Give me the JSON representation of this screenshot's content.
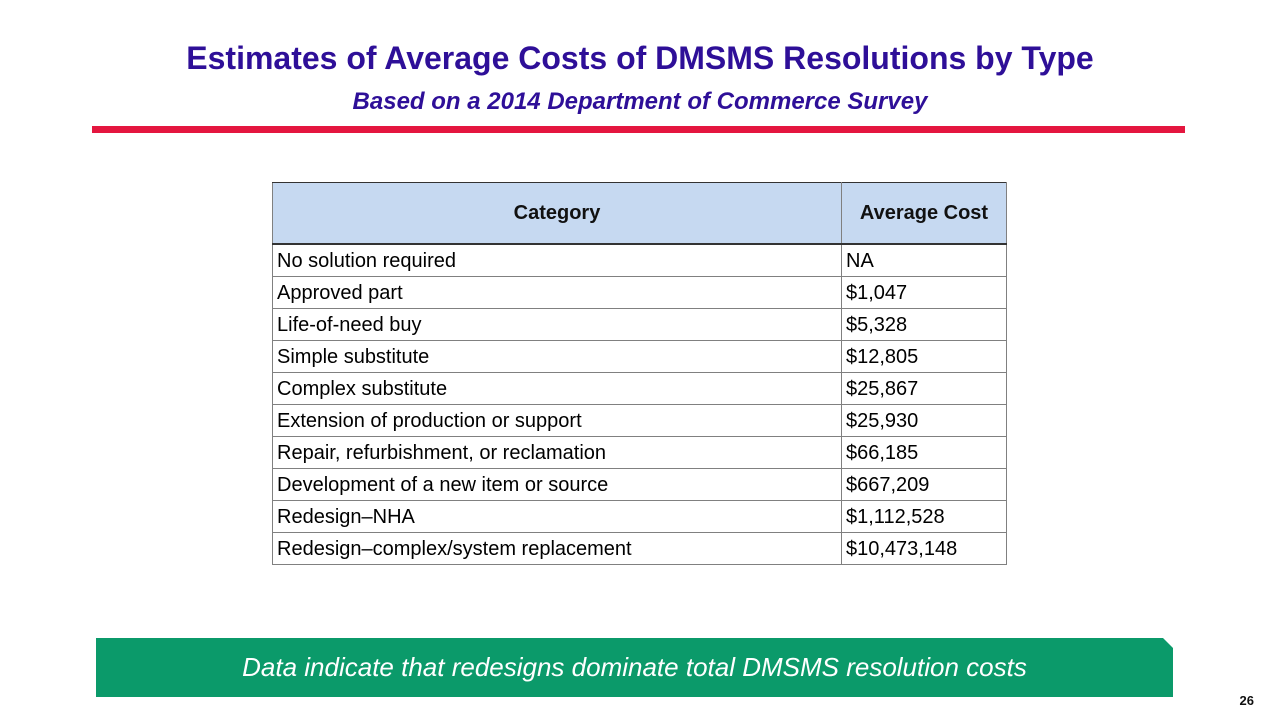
{
  "slide": {
    "title": "Estimates of Average Costs of DMSMS Resolutions by Type",
    "subtitle": "Based on a 2014 Department of Commerce Survey",
    "page_number": "26"
  },
  "table": {
    "headers": [
      "Category",
      "Average Cost"
    ],
    "rows": [
      [
        "No solution required",
        "NA"
      ],
      [
        "Approved part",
        "$1,047"
      ],
      [
        "Life-of-need buy",
        "$5,328"
      ],
      [
        "Simple substitute",
        "$12,805"
      ],
      [
        "Complex substitute",
        "$25,867"
      ],
      [
        "Extension of production or support",
        "$25,930"
      ],
      [
        "Repair, refurbishment, or reclamation",
        "$66,185"
      ],
      [
        "Development of a new item or source",
        "$667,209"
      ],
      [
        "Redesign–NHA",
        "$1,112,528"
      ],
      [
        "Redesign–complex/system replacement",
        "$10,473,148"
      ]
    ]
  },
  "callout": {
    "text": "Data indicate that redesigns dominate total DMSMS resolution costs"
  },
  "colors": {
    "title": "#2e0f98",
    "rule": "#e4163f",
    "header_fill": "#c6d9f1",
    "callout_fill": "#0b9a6a"
  }
}
